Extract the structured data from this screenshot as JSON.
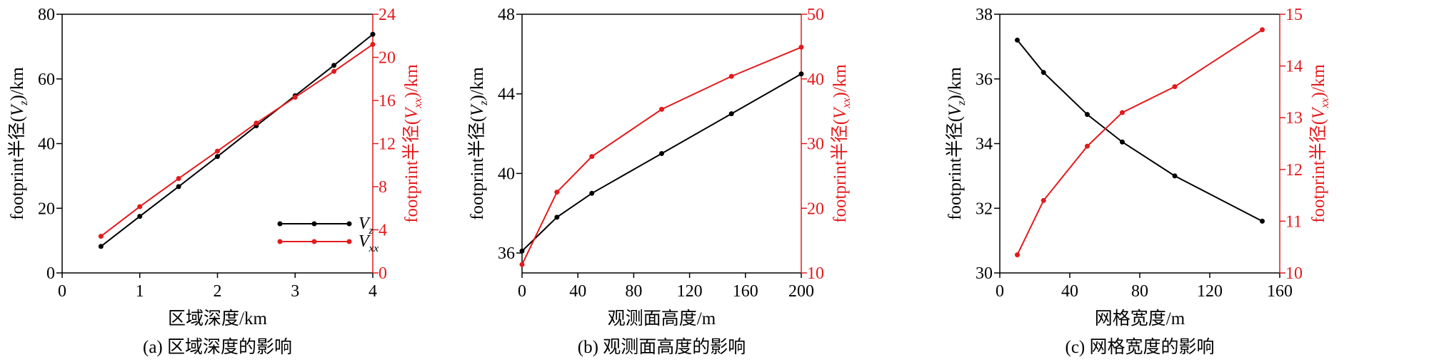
{
  "colors": {
    "vz": "#000000",
    "vxx": "#e31a1c",
    "axis": "#000000"
  },
  "chart_data": [
    {
      "type": "line",
      "caption": "(a) 区域深度的影响",
      "xlabel": "区域深度/km",
      "ylabel": "footprint半径(V_z)/km",
      "ylabel_main": "footprint半径(",
      "ylabel_tail": ")/km",
      "y2label_main": "footprint半径(",
      "y2label_tail": ")/km",
      "xlim": [
        0,
        4
      ],
      "xticks": [
        "0",
        "1",
        "2",
        "3",
        "4"
      ],
      "ylim": [
        0,
        80
      ],
      "yticks": [
        "0",
        "20",
        "40",
        "60",
        "80"
      ],
      "y2lim": [
        0,
        24
      ],
      "y2ticks": [
        "0",
        "4",
        "8",
        "12",
        "16",
        "20",
        "24"
      ],
      "legend": {
        "position": "bottom-right",
        "entries": [
          {
            "name": "V",
            "sub": "z"
          },
          {
            "name": "V",
            "sub": "xx"
          }
        ]
      },
      "x": [
        0.5,
        1.0,
        1.5,
        2.0,
        2.5,
        3.0,
        3.5,
        4.0
      ],
      "series": [
        {
          "name": "Vz",
          "axis": "left",
          "values": [
            8.2,
            17.5,
            26.7,
            36.0,
            45.5,
            54.8,
            64.2,
            73.8
          ]
        },
        {
          "name": "Vxx",
          "axis": "right",
          "values": [
            3.4,
            6.15,
            8.76,
            11.3,
            13.9,
            16.3,
            18.7,
            21.2
          ]
        }
      ]
    },
    {
      "type": "line",
      "caption": "(b) 观测面高度的影响",
      "xlabel": "观测面高度/m",
      "ylabel_main": "footprint半径(",
      "ylabel_tail": ")/km",
      "y2label_main": "footprint半径(",
      "y2label_tail": ")/km",
      "xlim": [
        0,
        200
      ],
      "xticks": [
        "0",
        "40",
        "80",
        "120",
        "160",
        "200"
      ],
      "ylim": [
        35,
        48
      ],
      "yticks": [
        "36",
        "40",
        "44",
        "48"
      ],
      "y2lim": [
        10,
        50
      ],
      "y2ticks": [
        "10",
        "20",
        "30",
        "40",
        "50"
      ],
      "x": [
        0,
        25,
        50,
        100,
        150,
        200
      ],
      "series": [
        {
          "name": "Vz",
          "axis": "left",
          "values": [
            36.1,
            37.8,
            39.0,
            41.0,
            43.0,
            45.0
          ]
        },
        {
          "name": "Vxx",
          "axis": "right",
          "values": [
            11.3,
            22.5,
            28.0,
            35.3,
            40.4,
            44.9
          ]
        }
      ]
    },
    {
      "type": "line",
      "caption": "(c) 网格宽度的影响",
      "xlabel": "网格宽度/m",
      "ylabel_main": "footprint半径(",
      "ylabel_tail": ")/km",
      "y2label_main": "footprint半径(",
      "y2label_tail": ")/km",
      "xlim": [
        0,
        160
      ],
      "xticks": [
        "0",
        "40",
        "80",
        "120",
        "160"
      ],
      "ylim": [
        30,
        38
      ],
      "yticks": [
        "30",
        "32",
        "34",
        "36",
        "38"
      ],
      "y2lim": [
        10,
        15
      ],
      "y2ticks": [
        "10",
        "11",
        "12",
        "13",
        "14",
        "15"
      ],
      "x": [
        10,
        25,
        50,
        70,
        100,
        150
      ],
      "series": [
        {
          "name": "Vz",
          "axis": "left",
          "values": [
            37.2,
            36.2,
            34.9,
            34.05,
            33.0,
            31.6
          ]
        },
        {
          "name": "Vxx",
          "axis": "right",
          "values": [
            10.35,
            11.4,
            12.45,
            13.1,
            13.6,
            14.7
          ]
        }
      ]
    }
  ]
}
